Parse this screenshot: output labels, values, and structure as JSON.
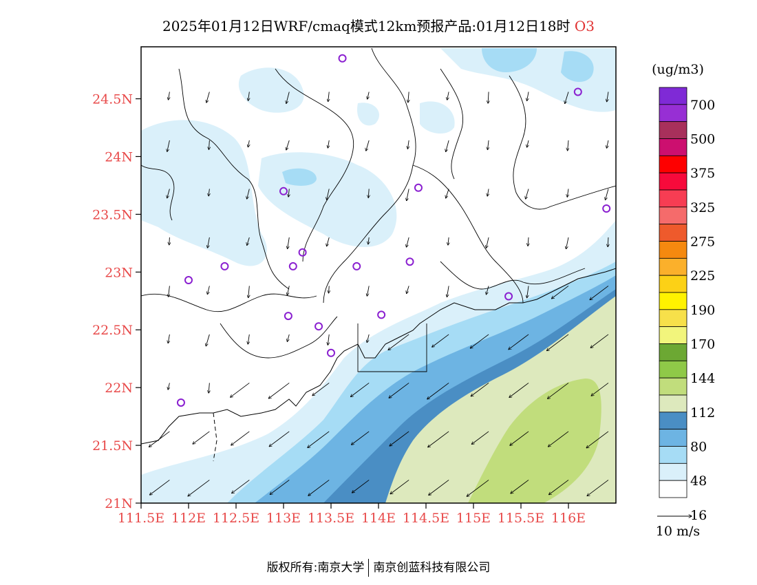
{
  "title": {
    "main": "2025年01月12日WRF/cmaq模式12km预报产品:01月12日18时",
    "species": "O3"
  },
  "axes": {
    "x_ticks": [
      "111.5E",
      "112E",
      "112.5E",
      "113E",
      "113.5E",
      "114E",
      "114.5E",
      "115E",
      "115.5E",
      "116E"
    ],
    "y_ticks": [
      "21N",
      "21.5N",
      "22N",
      "22.5N",
      "23N",
      "23.5N",
      "24N",
      "24.5N"
    ],
    "x_range": [
      111.5,
      116.5
    ],
    "y_range": [
      21.0,
      24.95
    ]
  },
  "legend": {
    "unit": "(ug/m3)",
    "labels": [
      "16",
      "48",
      "80",
      "112",
      "144",
      "170",
      "190",
      "225",
      "275",
      "325",
      "375",
      "500",
      "700"
    ],
    "colors": [
      "#ffffff",
      "#daf0fa",
      "#a6dcf5",
      "#6db4e3",
      "#4a8ec4",
      "#dde9bd",
      "#c1dd7c",
      "#8fc948",
      "#6ca833",
      "#f2f57c",
      "#f7e04a",
      "#fff200",
      "#fcd116",
      "#fbb02b",
      "#f5890f",
      "#ee5a2c",
      "#f56b6b",
      "#f73d53",
      "#f70a3b",
      "#fe0000",
      "#cc0f6f",
      "#a8305b",
      "#972fd4",
      "#7f2ad6"
    ]
  },
  "wind_scale": {
    "label": "10 m/s"
  },
  "credit": {
    "left": "版权所有:南京大学",
    "right": "南京创蓝科技有限公司"
  },
  "stations": [
    {
      "lon": 113.62,
      "lat": 24.85
    },
    {
      "lon": 116.1,
      "lat": 24.56
    },
    {
      "lon": 113.0,
      "lat": 23.7
    },
    {
      "lon": 114.42,
      "lat": 23.73
    },
    {
      "lon": 116.4,
      "lat": 23.55
    },
    {
      "lon": 112.0,
      "lat": 22.93
    },
    {
      "lon": 112.38,
      "lat": 23.05
    },
    {
      "lon": 113.1,
      "lat": 23.05
    },
    {
      "lon": 113.2,
      "lat": 23.17
    },
    {
      "lon": 113.77,
      "lat": 23.05
    },
    {
      "lon": 114.33,
      "lat": 23.09
    },
    {
      "lon": 113.05,
      "lat": 22.62
    },
    {
      "lon": 113.37,
      "lat": 22.53
    },
    {
      "lon": 114.03,
      "lat": 22.63
    },
    {
      "lon": 113.5,
      "lat": 22.3
    },
    {
      "lon": 115.37,
      "lat": 22.79
    },
    {
      "lon": 111.92,
      "lat": 21.87
    }
  ],
  "map_layers": "O3 concentration shading with 10 m wind vectors, coastline, provincial/county borders"
}
